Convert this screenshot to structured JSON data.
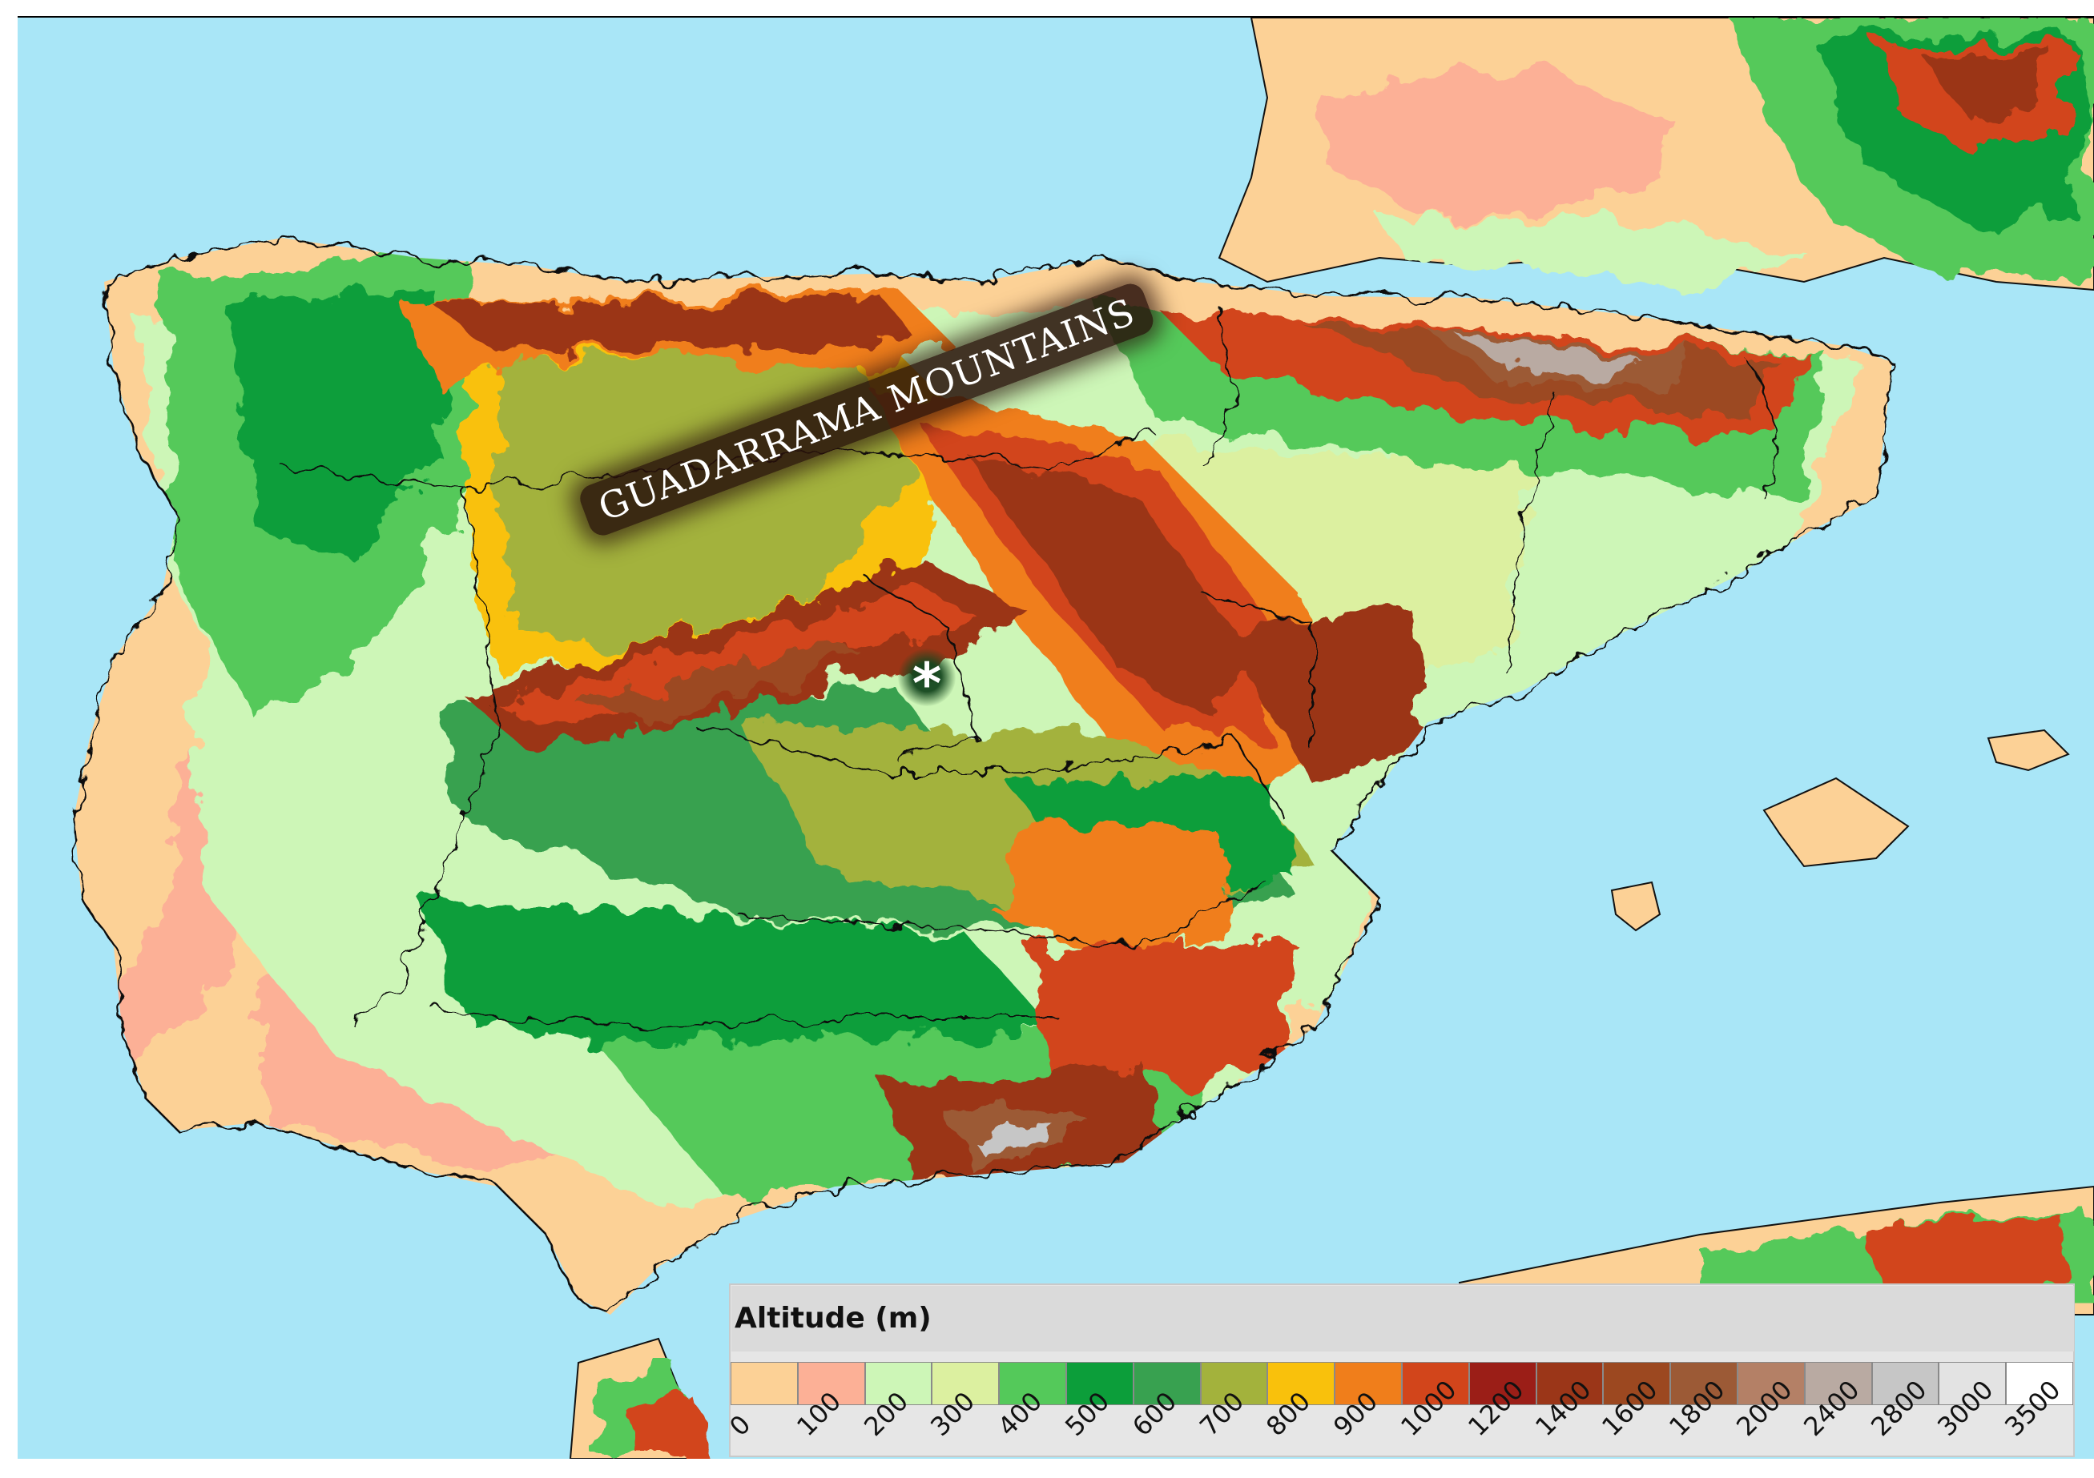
{
  "map": {
    "range_label": "GUADARRAMA MOUNTAINS",
    "marker_symbol": "*",
    "colors": {
      "sea": "#a9e6f7",
      "border": "#111111"
    }
  },
  "legend": {
    "title": "Altitude (m)",
    "entries": [
      {
        "value": "0",
        "color": "#fcd196"
      },
      {
        "value": "100",
        "color": "#fcb096"
      },
      {
        "value": "200",
        "color": "#cdf6b7"
      },
      {
        "value": "300",
        "color": "#dcf0a0"
      },
      {
        "value": "400",
        "color": "#54c95a"
      },
      {
        "value": "500",
        "color": "#0c9e3a"
      },
      {
        "value": "600",
        "color": "#38a150"
      },
      {
        "value": "700",
        "color": "#a3b23c"
      },
      {
        "value": "800",
        "color": "#f9c10c"
      },
      {
        "value": "900",
        "color": "#f07e1b"
      },
      {
        "value": "1000",
        "color": "#d2451b"
      },
      {
        "value": "1200",
        "color": "#9b1e17"
      },
      {
        "value": "1400",
        "color": "#9b3618"
      },
      {
        "value": "1600",
        "color": "#9c4820"
      },
      {
        "value": "1800",
        "color": "#9c5a36"
      },
      {
        "value": "2000",
        "color": "#b48066"
      },
      {
        "value": "2400",
        "color": "#b9aaa2"
      },
      {
        "value": "2800",
        "color": "#c6c6c6"
      },
      {
        "value": "3000",
        "color": "#e3e3e3"
      },
      {
        "value": "3500",
        "color": "#ffffff"
      }
    ]
  }
}
